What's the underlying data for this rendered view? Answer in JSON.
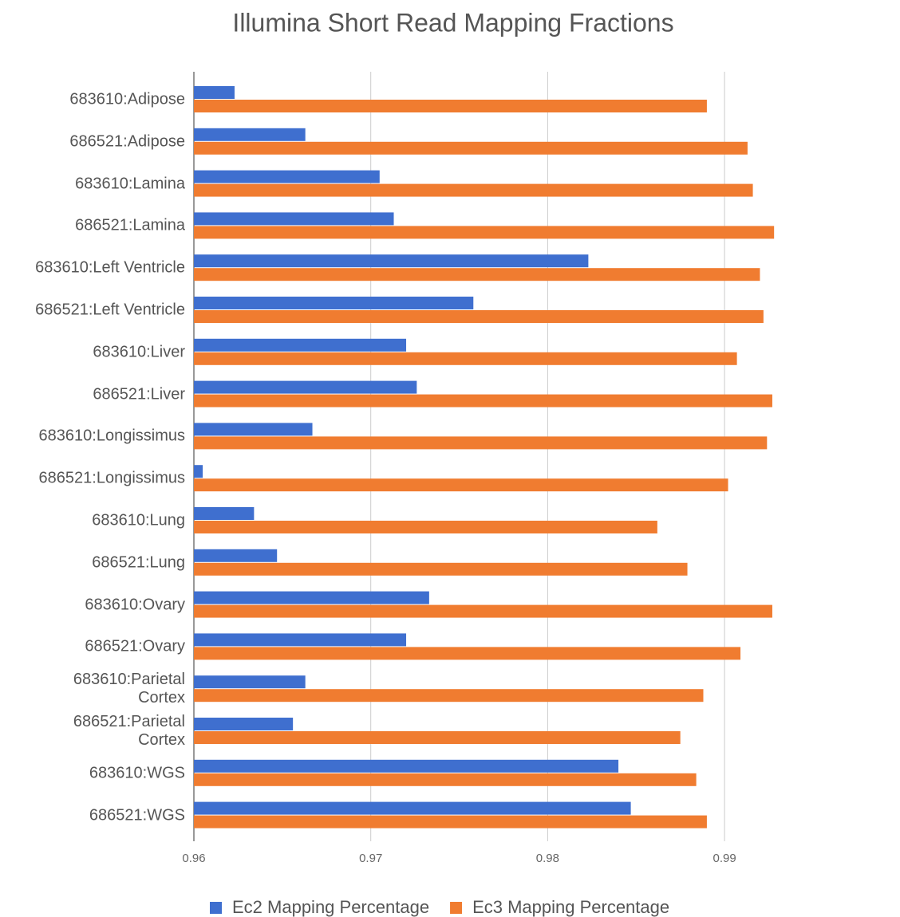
{
  "chart_data": {
    "type": "bar",
    "orientation": "horizontal",
    "title": "Illumina Short Read Mapping Fractions",
    "categories": [
      "683610:Adipose",
      "686521:Adipose",
      "683610:Lamina",
      "686521:Lamina",
      "683610:Left Ventricle",
      "686521:Left Ventricle",
      "683610:Liver",
      "686521:Liver",
      "683610:Longissimus",
      "686521:Longissimus",
      "683610:Lung",
      "686521:Lung",
      "683610:Ovary",
      "686521:Ovary",
      "683610:Parietal Cortex",
      "686521:Parietal Cortex",
      "683610:WGS",
      "686521:WGS"
    ],
    "series": [
      {
        "name": "Ec2 Mapping Percentage",
        "color": "#3f6fcf",
        "values": [
          0.9623,
          0.9663,
          0.9705,
          0.9713,
          0.9823,
          0.9758,
          0.972,
          0.9726,
          0.9667,
          0.9605,
          0.9634,
          0.9647,
          0.9733,
          0.972,
          0.9663,
          0.9656,
          0.984,
          0.9847
        ]
      },
      {
        "name": "Ec3 Mapping Percentage",
        "color": "#f07c30",
        "values": [
          0.989,
          0.9913,
          0.9916,
          0.9928,
          0.992,
          0.9922,
          0.9907,
          0.9927,
          0.9924,
          0.9902,
          0.9862,
          0.9879,
          0.9927,
          0.9909,
          0.9888,
          0.9875,
          0.9884,
          0.989
        ]
      }
    ],
    "xlim": [
      0.96,
      0.995
    ],
    "xticks": [
      0.96,
      0.97,
      0.98,
      0.99
    ],
    "grid": true,
    "legend": "bottom"
  }
}
